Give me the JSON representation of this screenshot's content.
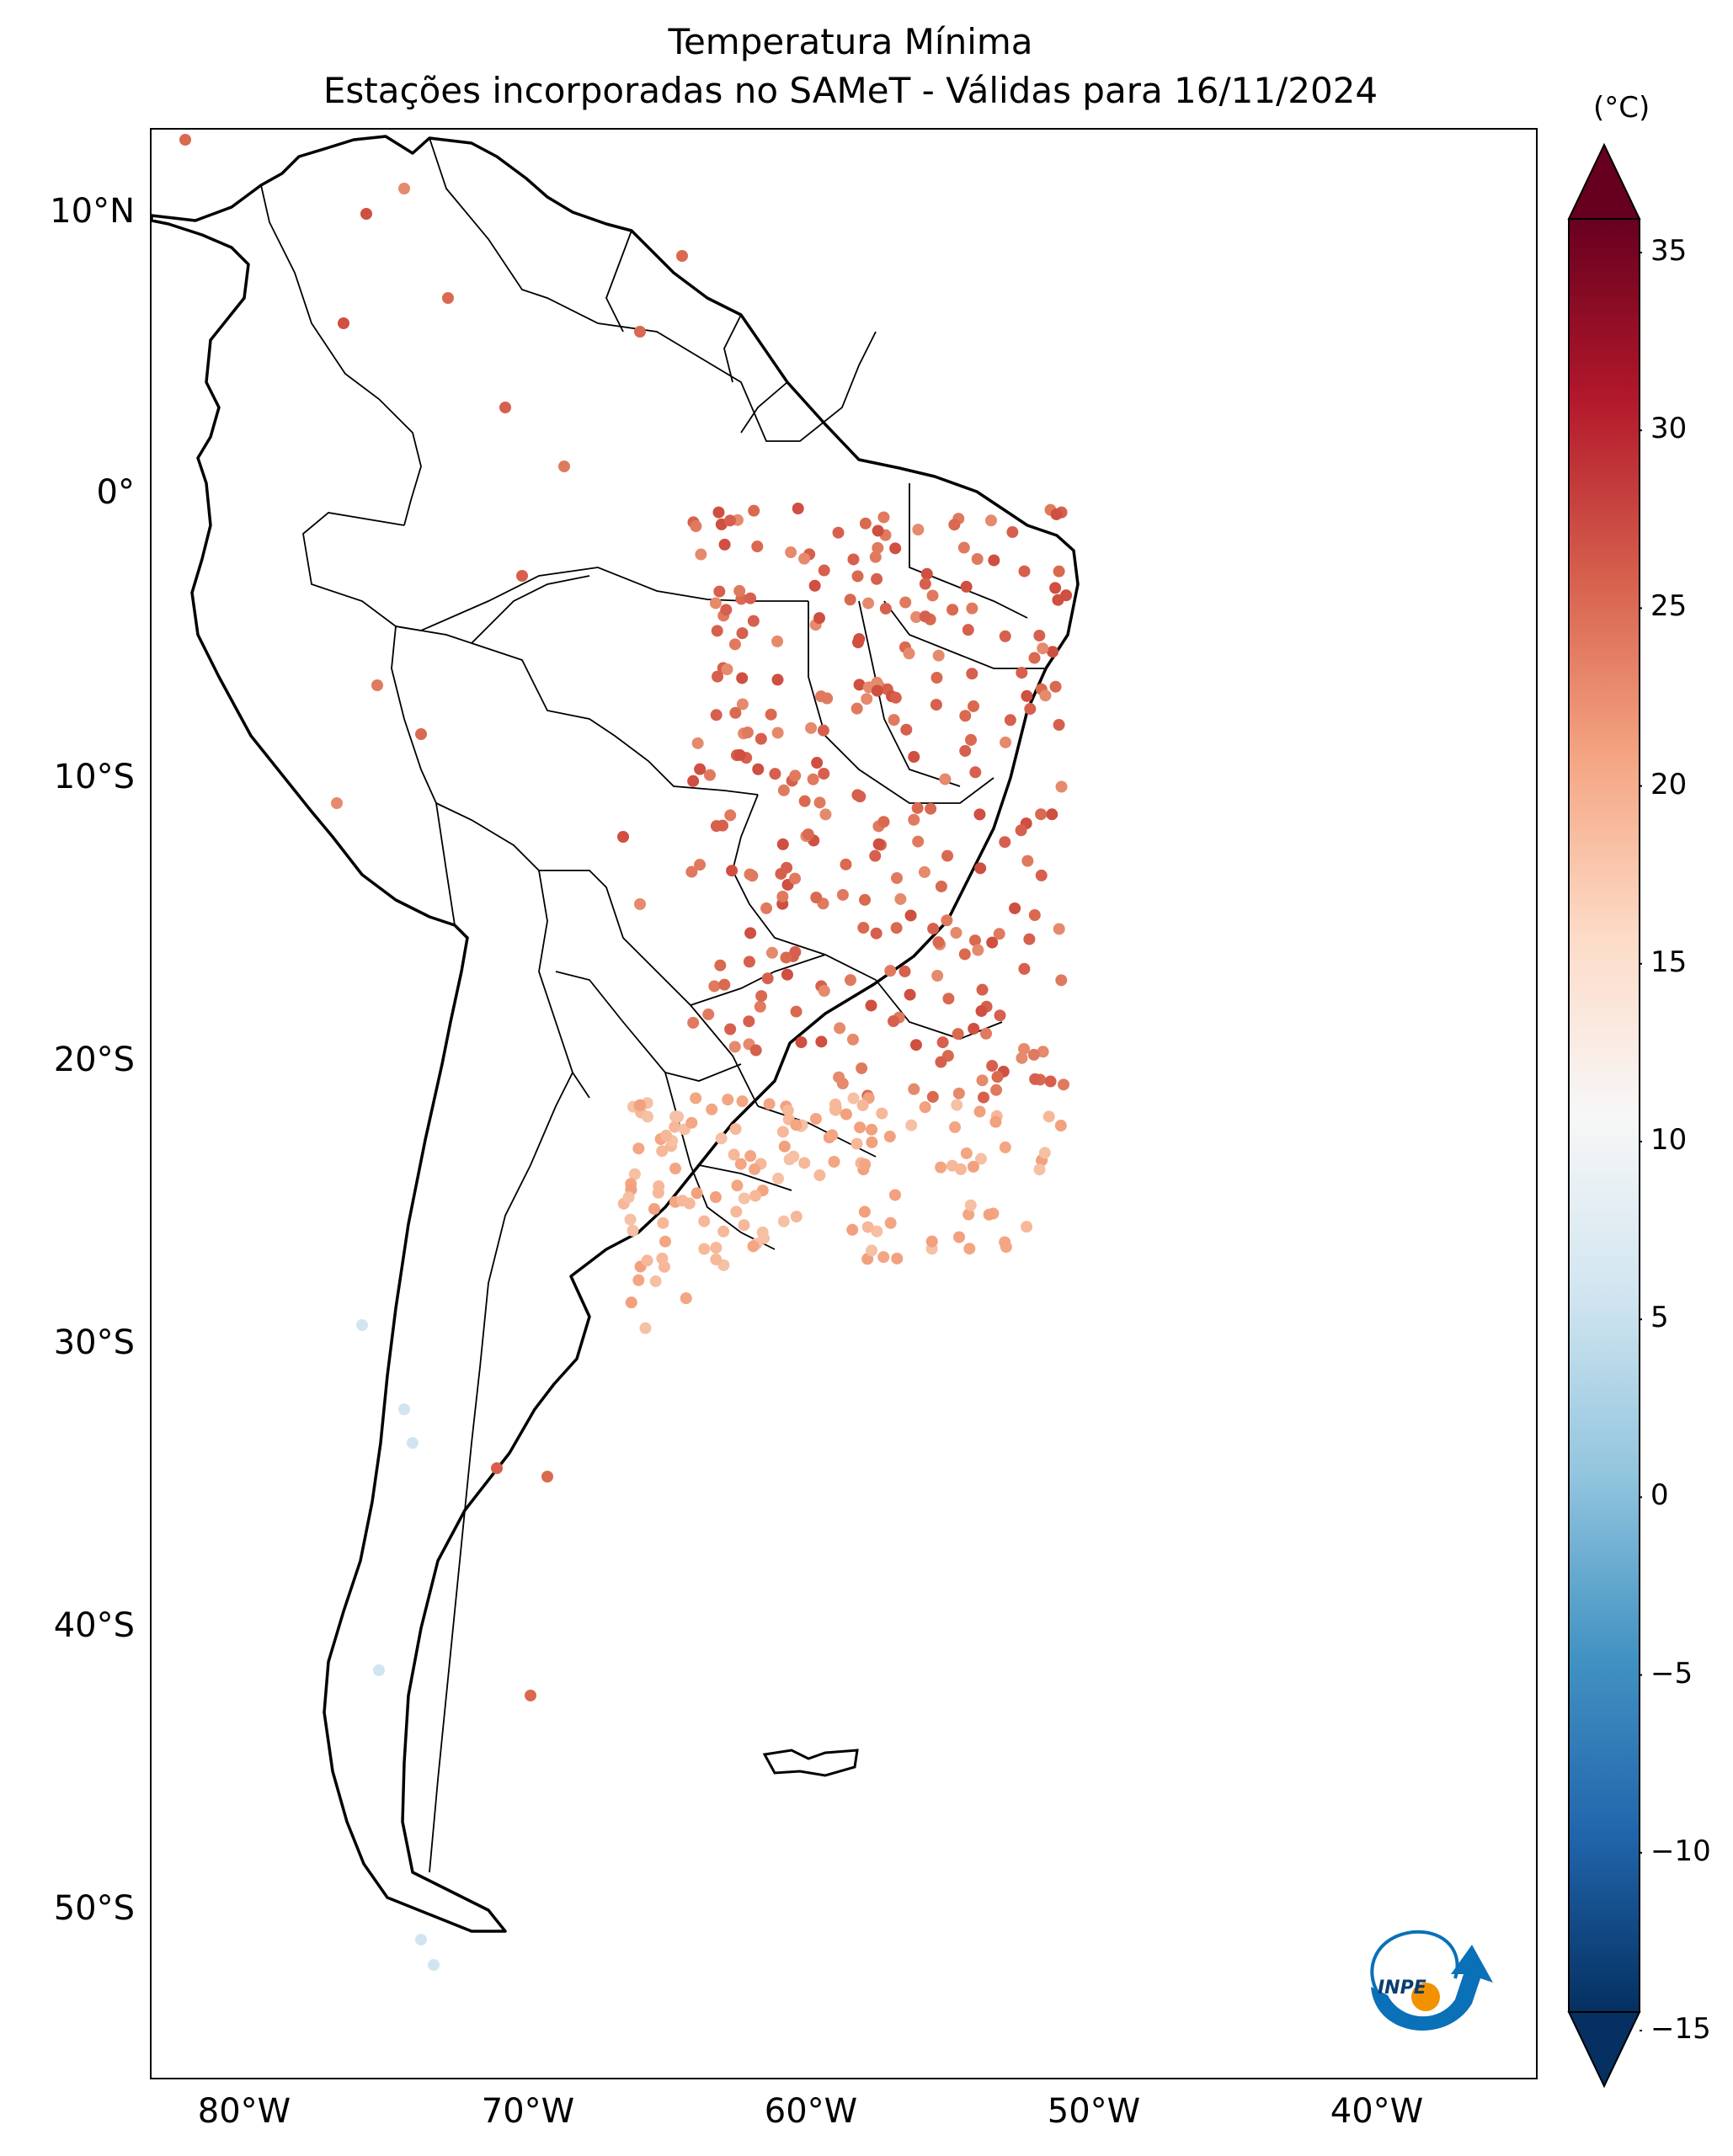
{
  "title_line1": "Temperatura Mínima",
  "title_line2": "Estações incorporadas no SAMeT - Válidas para 16/11/2024",
  "colorbar": {
    "unit": "(°C)",
    "ticks": [
      "35",
      "30",
      "25",
      "20",
      "15",
      "10",
      "5",
      "0",
      "−5",
      "−10",
      "−15"
    ],
    "min": -15,
    "max": 35,
    "extend": "both",
    "colormap": "RdBu_r"
  },
  "lat_labels": [
    "10°N",
    "0°",
    "10°S",
    "20°S",
    "30°S",
    "40°S",
    "50°S"
  ],
  "lon_labels": [
    "80°W",
    "70°W",
    "60°W",
    "50°W",
    "40°W"
  ],
  "logo": {
    "text": "INPE",
    "colors": {
      "blue": "#0a70b8",
      "orange": "#f29200"
    }
  },
  "colors": {
    "high": "#67001f",
    "warm": "#d6604d",
    "mid": "#f7f7f7",
    "cool": "#4393c3",
    "low": "#053061"
  }
}
